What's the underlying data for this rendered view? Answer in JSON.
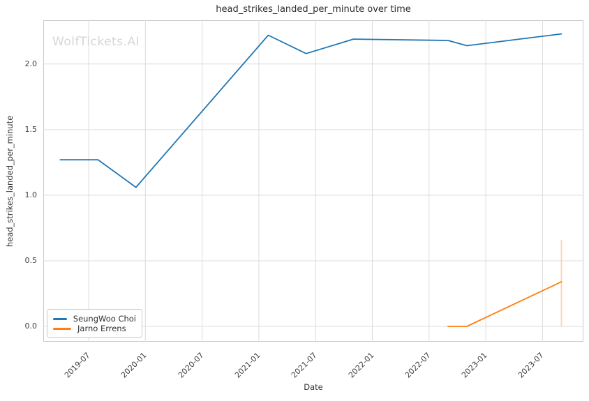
{
  "chart_data": {
    "type": "line",
    "title": "head_strikes_landed_per_minute over time",
    "xlabel": "Date",
    "ylabel": "head_strikes_landed_per_minute",
    "watermark": "WolfTickets.AI",
    "grid": true,
    "legend_position": "lower left",
    "x_tick_labels": [
      "2019-07",
      "2020-01",
      "2020-07",
      "2021-01",
      "2021-07",
      "2022-01",
      "2022-07",
      "2023-01",
      "2023-07"
    ],
    "y_tick_labels": [
      "0.0",
      "0.5",
      "1.0",
      "1.5",
      "2.0"
    ],
    "ylim": [
      -0.06,
      2.33
    ],
    "xlim": [
      "2019-02",
      "2023-11"
    ],
    "colors": {
      "series_blue": "#1f77b4",
      "series_orange": "#ff7f0e",
      "ci_orange": "#ffc089",
      "grid": "#dcdcdc",
      "spine": "#c9c9c9",
      "watermark": "#d6d6d6"
    },
    "series": [
      {
        "name": "SeungWoo Choi",
        "color": "#1f77b4",
        "points": [
          {
            "date": "2019-04",
            "value": 1.27
          },
          {
            "date": "2019-08",
            "value": 1.27
          },
          {
            "date": "2019-12",
            "value": 1.06
          },
          {
            "date": "2021-02",
            "value": 2.22
          },
          {
            "date": "2021-06",
            "value": 2.08
          },
          {
            "date": "2021-11",
            "value": 2.19
          },
          {
            "date": "2022-09",
            "value": 2.18
          },
          {
            "date": "2022-11",
            "value": 2.14
          },
          {
            "date": "2023-09",
            "value": 2.23
          }
        ]
      },
      {
        "name": "Jarno Errens",
        "color": "#ff7f0e",
        "points": [
          {
            "date": "2022-09",
            "value": 0.0
          },
          {
            "date": "2022-11",
            "value": 0.0
          },
          {
            "date": "2023-09",
            "value": 0.34
          }
        ],
        "ci": [
          {
            "date": "2023-09",
            "low": 0.0,
            "high": 0.66
          }
        ]
      }
    ]
  }
}
